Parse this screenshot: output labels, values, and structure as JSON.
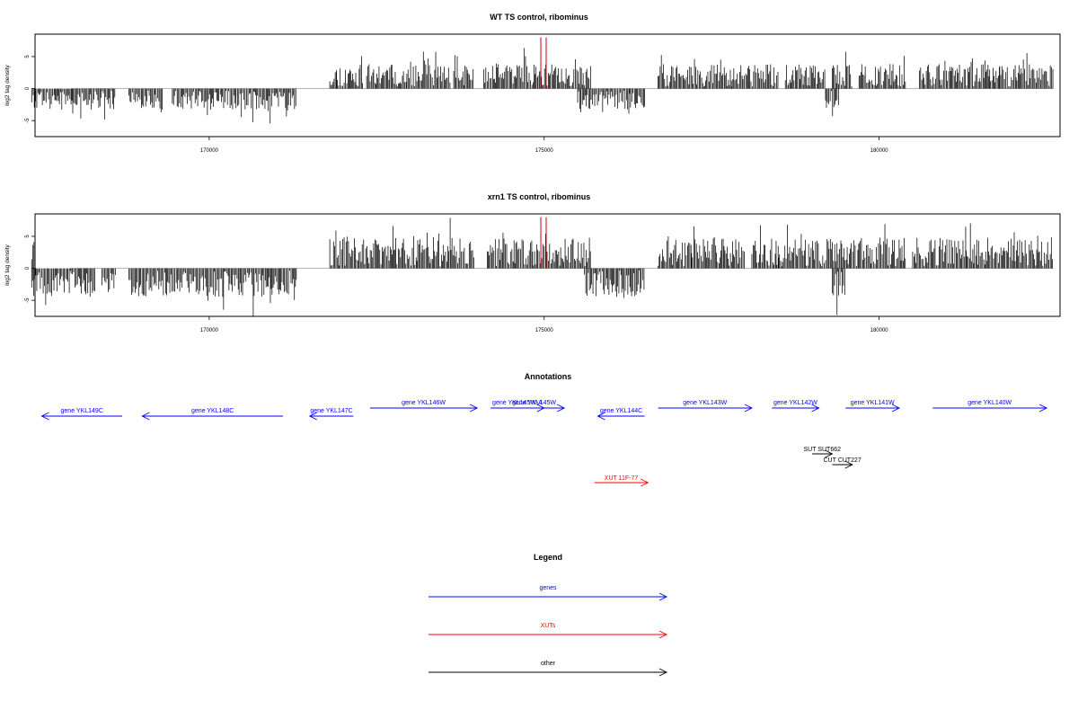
{
  "chart_data": [
    {
      "type": "bar",
      "title": "WT TS control, ribominus",
      "ylabel": "log2 tag density",
      "ylim": [
        -7.5,
        8.5
      ],
      "yticks": [
        -5,
        0,
        5
      ],
      "xlim": [
        167400,
        182700
      ],
      "xticks": [
        170000,
        175000,
        180000
      ],
      "x_tick_labels": [
        "170000",
        "175000",
        "180000"
      ],
      "plus_segments": [
        [
          171800,
          171900
        ],
        [
          171900,
          172300
        ],
        [
          172350,
          172950
        ],
        [
          172950,
          173600
        ],
        [
          173650,
          173950
        ],
        [
          174100,
          174550
        ],
        [
          174550,
          175700
        ],
        [
          176700,
          177800
        ],
        [
          177800,
          178500
        ],
        [
          178600,
          179200
        ],
        [
          179300,
          179600
        ],
        [
          179700,
          180400
        ],
        [
          180600,
          181800
        ],
        [
          181800,
          182600
        ]
      ],
      "minus_segments": [
        [
          167350,
          167950
        ],
        [
          167950,
          168600
        ],
        [
          168800,
          169000
        ],
        [
          169000,
          169300
        ],
        [
          169450,
          170400
        ],
        [
          170400,
          171300
        ],
        [
          175500,
          175700
        ],
        [
          175700,
          176500
        ],
        [
          179200,
          179400
        ]
      ],
      "plus_amp": 3.5,
      "minus_amp": 3.0,
      "highlight": {
        "color": "#d40000",
        "peaks": [
          {
            "x": 174950,
            "value": 8.0
          },
          {
            "x": 175030,
            "value": 8.0
          }
        ]
      },
      "seed": 11
    },
    {
      "type": "bar",
      "title": "xrn1 TS control, ribominus",
      "ylabel": "log2 tag density",
      "ylim": [
        -7.5,
        8.5
      ],
      "yticks": [
        -5,
        0,
        5
      ],
      "xlim": [
        167400,
        182700
      ],
      "xticks": [
        170000,
        175000,
        180000
      ],
      "x_tick_labels": [
        "170000",
        "175000",
        "180000"
      ],
      "plus_segments": [
        [
          167350,
          167400
        ],
        [
          171800,
          172500
        ],
        [
          172500,
          173100
        ],
        [
          173100,
          173950
        ],
        [
          174150,
          174550
        ],
        [
          174550,
          175700
        ],
        [
          176700,
          177200
        ],
        [
          177200,
          178000
        ],
        [
          178100,
          178500
        ],
        [
          178500,
          179300
        ],
        [
          179300,
          179700
        ],
        [
          179700,
          180400
        ],
        [
          180500,
          181300
        ],
        [
          181300,
          182600
        ]
      ],
      "minus_segments": [
        [
          167350,
          168300
        ],
        [
          168400,
          168600
        ],
        [
          168800,
          170600
        ],
        [
          170600,
          171300
        ],
        [
          175600,
          176500
        ],
        [
          179300,
          179500
        ]
      ],
      "plus_amp": 4.5,
      "minus_amp": 4.2,
      "highlight": {
        "color": "#d40000",
        "peaks": [
          {
            "x": 174950,
            "value": 8.0
          },
          {
            "x": 175030,
            "value": 8.0
          }
        ]
      },
      "seed": 29
    }
  ],
  "annotations": {
    "title": "Annotations",
    "genes": [
      {
        "label": "gene YKL149C",
        "start": 168700,
        "end": 167500,
        "row": 1
      },
      {
        "label": "gene YKL148C",
        "start": 171100,
        "end": 169000,
        "row": 1
      },
      {
        "label": "gene YKL147C",
        "start": 172150,
        "end": 171500,
        "row": 1
      },
      {
        "label": "gene YKL146W",
        "start": 172400,
        "end": 174000,
        "row": 0
      },
      {
        "label": "gene YKL145W-A",
        "start": 174200,
        "end": 175000,
        "row": 0
      },
      {
        "label": "gene YKL145W",
        "start": 174400,
        "end": 175300,
        "row": 0
      },
      {
        "label": "gene YKL144C",
        "start": 176500,
        "end": 175800,
        "row": 1
      },
      {
        "label": "gene YKL143W",
        "start": 176700,
        "end": 178100,
        "row": 0
      },
      {
        "label": "gene YKL142W",
        "start": 178400,
        "end": 179100,
        "row": 0
      },
      {
        "label": "gene YKL141W",
        "start": 179500,
        "end": 180300,
        "row": 0
      },
      {
        "label": "gene YKL140W",
        "start": 180800,
        "end": 182500,
        "row": 0
      }
    ],
    "others": [
      {
        "label": "SUT SUT662",
        "start": 179000,
        "end": 179300,
        "row": 0
      },
      {
        "label": "CUT CUT227",
        "start": 179300,
        "end": 179600,
        "row": 1
      }
    ],
    "xuts": [
      {
        "label": "XUT 11F-77",
        "start": 175750,
        "end": 176550
      }
    ]
  },
  "legend": {
    "title": "Legend",
    "items": [
      {
        "label": "genes",
        "color": "#0000ff"
      },
      {
        "label": "XUTs",
        "color": "#ff0000"
      },
      {
        "label": "other",
        "color": "#000000"
      }
    ]
  }
}
